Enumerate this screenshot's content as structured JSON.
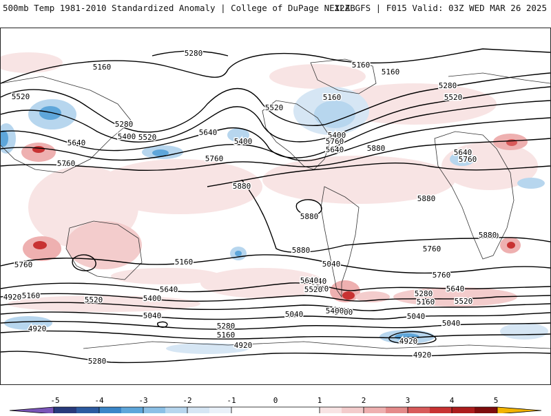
{
  "header": {
    "title_left": "500mb Temp 1981-2010 Standardized Anomaly | College of DuPage NEXLAB",
    "title_right": "12Z GFS | F015 Valid: 03Z WED MAR 26 2025"
  },
  "map": {
    "contour_labels": [
      "5280",
      "5160",
      "5160",
      "5160",
      "5520",
      "5280",
      "5400",
      "5520",
      "5640",
      "5760",
      "5880",
      "5880",
      "5880",
      "5880",
      "5880",
      "5160",
      "5520",
      "5400",
      "5640",
      "5760",
      "5400",
      "5280",
      "5520",
      "5640",
      "5760",
      "5880",
      "5760",
      "5640",
      "5520",
      "5400",
      "5160",
      "5040",
      "4920",
      "5040",
      "5280",
      "5160",
      "4920",
      "5040",
      "5040",
      "5640",
      "5520",
      "5400",
      "5280",
      "5160",
      "4920",
      "4920",
      "5760",
      "5640",
      "5520",
      "5280",
      "5160",
      "5040",
      "4920",
      "5760",
      "5640",
      "5760",
      "5400",
      "5520",
      "5640",
      "5880"
    ]
  },
  "colorbar": {
    "tick_labels": [
      "-5",
      "-4",
      "-3",
      "-2",
      "-1",
      "0",
      "1",
      "2",
      "3",
      "4",
      "5"
    ],
    "colors": {
      "m5": "#7a55b8",
      "m45": "#283a7c",
      "m4": "#2c5aa0",
      "m35": "#3a86c8",
      "m3": "#5ea6da",
      "m25": "#8cc0e6",
      "m2": "#b7d6ee",
      "m15": "#d6e6f4",
      "m1": "#eaf1f9",
      "zero": "#ffffff",
      "p1": "#f8e4e4",
      "p15": "#f3cccc",
      "p2": "#eeb0b0",
      "p25": "#e48a8a",
      "p3": "#d85a5a",
      "p35": "#c83232",
      "p4": "#ac1c1c",
      "p45": "#7e0c0c",
      "p5": "#f3b400"
    }
  }
}
